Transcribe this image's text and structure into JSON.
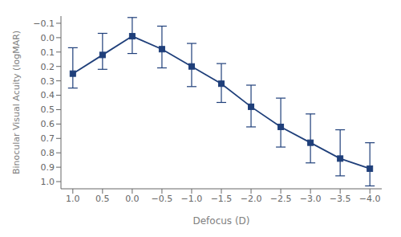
{
  "chart_data": {
    "type": "line",
    "xlabel": "Defocus (D)",
    "ylabel": "Binocular Visual Acuity (logMAR)",
    "x": [
      1.0,
      0.5,
      0.0,
      -0.5,
      -1.0,
      -1.5,
      -2.0,
      -2.5,
      -3.0,
      -3.5,
      -4.0
    ],
    "values": [
      0.25,
      0.12,
      -0.01,
      0.08,
      0.2,
      0.32,
      0.48,
      0.62,
      0.73,
      0.84,
      0.91
    ],
    "yerr_lower": [
      0.18,
      0.15,
      0.13,
      0.16,
      0.16,
      0.14,
      0.15,
      0.2,
      0.2,
      0.2,
      0.18
    ],
    "yerr_upper": [
      0.1,
      0.1,
      0.12,
      0.13,
      0.14,
      0.13,
      0.14,
      0.14,
      0.14,
      0.12,
      0.12
    ],
    "color": "#1f3f7a",
    "marker": "square",
    "line_style": "solid",
    "xlim": [
      1.2,
      -4.2
    ],
    "ylim": [
      1.05,
      -0.15
    ],
    "xticks": [
      {
        "value": 1.0,
        "label": "1.0"
      },
      {
        "value": 0.5,
        "label": "0.5"
      },
      {
        "value": 0.0,
        "label": "0.0"
      },
      {
        "value": -0.5,
        "label": "−0.5"
      },
      {
        "value": -1.0,
        "label": "−1.0"
      },
      {
        "value": -1.5,
        "label": "−1.5"
      },
      {
        "value": -2.0,
        "label": "−2.0"
      },
      {
        "value": -2.5,
        "label": "−2.5"
      },
      {
        "value": -3.0,
        "label": "−3.0"
      },
      {
        "value": -3.5,
        "label": "−3.5"
      },
      {
        "value": -4.0,
        "label": "−4.0"
      }
    ],
    "yticks": [
      {
        "value": -0.1,
        "label": "−0.1"
      },
      {
        "value": 0.0,
        "label": "0.0"
      },
      0.1,
      0.2,
      0.3,
      0.4,
      0.5,
      0.6,
      0.7,
      0.8,
      0.9,
      {
        "value": 1.0,
        "label": "1.0"
      }
    ],
    "grid": false
  }
}
